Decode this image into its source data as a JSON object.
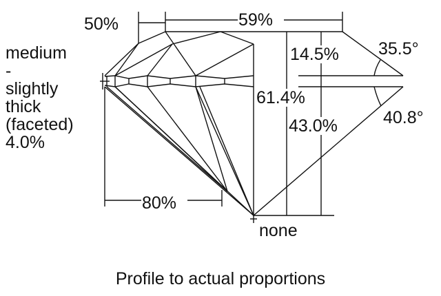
{
  "diagram": {
    "caption": "Profile to actual proportions",
    "labels": {
      "lower_half_length": "50%",
      "table": "59%",
      "crown_height": "14.5%",
      "crown_angle": "35.5°",
      "total_depth": "61.4%",
      "pavilion_depth": "43.0%",
      "pavilion_angle": "40.8°",
      "star_length": "80%",
      "culet": "none"
    },
    "girdle_label_lines": [
      "medium",
      "-",
      "slightly",
      "thick",
      "(faceted)",
      "4.0%"
    ]
  }
}
